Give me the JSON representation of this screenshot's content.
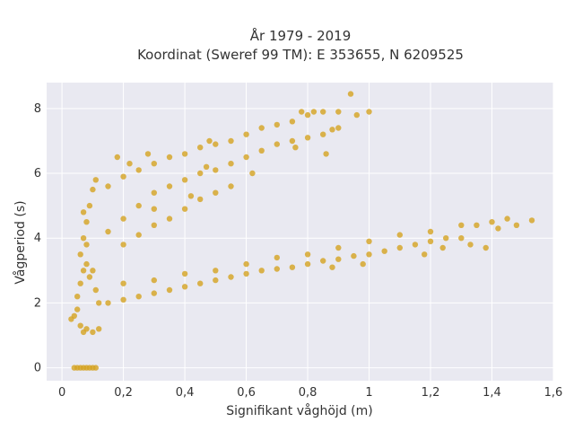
{
  "chart_data": {
    "type": "scatter",
    "title": "År 1979 - 2019",
    "subtitle": "Koordinat (Sweref 99 TM): E 353655, N 6209525",
    "xlabel": "Signifikant våghöjd (m)",
    "ylabel": "Vågperiod (s)",
    "xlim": [
      -0.05,
      1.6
    ],
    "ylim": [
      -0.4,
      8.8
    ],
    "xticks": [
      0,
      0.2,
      0.4,
      0.6,
      0.8,
      1,
      1.2,
      1.4,
      1.6
    ],
    "xtick_labels": [
      "0",
      "0,2",
      "0,4",
      "0,6",
      "0,8",
      "1",
      "1,2",
      "1,4",
      "1,6"
    ],
    "yticks": [
      0,
      2,
      4,
      6,
      8
    ],
    "ytick_labels": [
      "0",
      "2",
      "4",
      "6",
      "8"
    ],
    "grid": true,
    "background": "#e9e9f1",
    "marker_color": "#d4a320",
    "series": [
      {
        "values": [
          [
            0.04,
            0.0
          ],
          [
            0.05,
            0.0
          ],
          [
            0.06,
            0.0
          ],
          [
            0.07,
            0.0
          ],
          [
            0.08,
            0.0
          ],
          [
            0.09,
            0.0
          ],
          [
            0.1,
            0.0
          ],
          [
            0.11,
            0.0
          ],
          [
            0.03,
            1.5
          ],
          [
            0.04,
            1.6
          ],
          [
            0.05,
            1.8
          ],
          [
            0.06,
            1.3
          ],
          [
            0.07,
            1.1
          ],
          [
            0.08,
            1.2
          ],
          [
            0.1,
            1.1
          ],
          [
            0.12,
            1.2
          ],
          [
            0.05,
            2.2
          ],
          [
            0.06,
            2.6
          ],
          [
            0.07,
            3.0
          ],
          [
            0.08,
            3.2
          ],
          [
            0.09,
            2.8
          ],
          [
            0.1,
            3.0
          ],
          [
            0.11,
            2.4
          ],
          [
            0.12,
            2.0
          ],
          [
            0.06,
            3.5
          ],
          [
            0.07,
            4.0
          ],
          [
            0.08,
            4.5
          ],
          [
            0.09,
            5.0
          ],
          [
            0.1,
            5.5
          ],
          [
            0.11,
            5.8
          ],
          [
            0.08,
            3.8
          ],
          [
            0.07,
            4.8
          ],
          [
            0.15,
            2.0
          ],
          [
            0.2,
            2.1
          ],
          [
            0.25,
            2.2
          ],
          [
            0.3,
            2.3
          ],
          [
            0.35,
            2.4
          ],
          [
            0.4,
            2.5
          ],
          [
            0.45,
            2.6
          ],
          [
            0.5,
            2.7
          ],
          [
            0.55,
            2.8
          ],
          [
            0.6,
            2.9
          ],
          [
            0.65,
            3.0
          ],
          [
            0.7,
            3.05
          ],
          [
            0.75,
            3.1
          ],
          [
            0.8,
            3.2
          ],
          [
            0.85,
            3.3
          ],
          [
            0.9,
            3.35
          ],
          [
            0.95,
            3.45
          ],
          [
            1.0,
            3.5
          ],
          [
            1.05,
            3.6
          ],
          [
            1.1,
            3.7
          ],
          [
            1.15,
            3.8
          ],
          [
            1.2,
            3.9
          ],
          [
            1.25,
            4.0
          ],
          [
            1.3,
            4.0
          ],
          [
            0.2,
            2.6
          ],
          [
            0.3,
            2.7
          ],
          [
            0.4,
            2.9
          ],
          [
            0.5,
            3.0
          ],
          [
            0.6,
            3.2
          ],
          [
            0.7,
            3.4
          ],
          [
            0.8,
            3.5
          ],
          [
            0.9,
            3.7
          ],
          [
            1.0,
            3.9
          ],
          [
            1.1,
            4.1
          ],
          [
            1.2,
            4.2
          ],
          [
            1.3,
            4.4
          ],
          [
            1.35,
            4.4
          ],
          [
            1.4,
            4.5
          ],
          [
            1.45,
            4.6
          ],
          [
            1.48,
            4.4
          ],
          [
            1.53,
            4.55
          ],
          [
            1.42,
            4.3
          ],
          [
            1.38,
            3.7
          ],
          [
            1.33,
            3.8
          ],
          [
            1.24,
            3.7
          ],
          [
            1.18,
            3.5
          ],
          [
            0.98,
            3.2
          ],
          [
            0.88,
            3.1
          ],
          [
            0.15,
            4.2
          ],
          [
            0.2,
            4.6
          ],
          [
            0.25,
            5.0
          ],
          [
            0.3,
            5.4
          ],
          [
            0.35,
            5.6
          ],
          [
            0.4,
            5.8
          ],
          [
            0.45,
            6.0
          ],
          [
            0.5,
            6.1
          ],
          [
            0.55,
            6.3
          ],
          [
            0.6,
            6.5
          ],
          [
            0.65,
            6.7
          ],
          [
            0.7,
            6.9
          ],
          [
            0.75,
            7.0
          ],
          [
            0.8,
            7.1
          ],
          [
            0.85,
            7.2
          ],
          [
            0.9,
            7.4
          ],
          [
            0.15,
            5.6
          ],
          [
            0.2,
            5.9
          ],
          [
            0.25,
            6.1
          ],
          [
            0.3,
            6.3
          ],
          [
            0.35,
            6.5
          ],
          [
            0.4,
            6.6
          ],
          [
            0.45,
            6.8
          ],
          [
            0.5,
            6.9
          ],
          [
            0.55,
            7.0
          ],
          [
            0.6,
            7.2
          ],
          [
            0.65,
            7.4
          ],
          [
            0.7,
            7.5
          ],
          [
            0.75,
            7.6
          ],
          [
            0.8,
            7.8
          ],
          [
            0.85,
            7.9
          ],
          [
            0.9,
            7.9
          ],
          [
            0.94,
            8.45
          ],
          [
            1.0,
            7.9
          ],
          [
            0.96,
            7.8
          ],
          [
            0.82,
            7.9
          ],
          [
            0.78,
            7.9
          ],
          [
            0.88,
            7.35
          ],
          [
            0.76,
            6.8
          ],
          [
            0.86,
            6.6
          ],
          [
            0.2,
            3.8
          ],
          [
            0.25,
            4.1
          ],
          [
            0.3,
            4.4
          ],
          [
            0.35,
            4.6
          ],
          [
            0.4,
            4.9
          ],
          [
            0.45,
            5.2
          ],
          [
            0.5,
            5.4
          ],
          [
            0.55,
            5.6
          ],
          [
            0.18,
            6.5
          ],
          [
            0.22,
            6.3
          ],
          [
            0.28,
            6.6
          ],
          [
            0.48,
            7.0
          ],
          [
            0.62,
            6.0
          ],
          [
            0.42,
            5.3
          ],
          [
            0.3,
            4.9
          ],
          [
            0.47,
            6.2
          ]
        ]
      }
    ]
  }
}
